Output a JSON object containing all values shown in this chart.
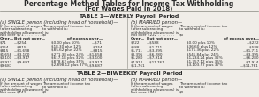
{
  "title1": "Percentage Method Tables for Income Tax Withholding",
  "title2": "(For Wages Paid in 2018)",
  "table1_header": "TABLE 1—WEEKLY Payroll Period",
  "table2_header": "TABLE 2—BIWEEKLY Payroll Period",
  "single_header_a": "(a) SINGLE person (including head of household)—",
  "married_header_b": "(b) MARRIED person—",
  "single_rows": [
    [
      "$71",
      "—$254",
      "$0.00 plus 10%",
      "—$71"
    ],
    [
      "$254",
      "—$815",
      "$18.30 plus 12%",
      "—$254"
    ],
    [
      "$815",
      "—$1,658",
      "$85.62 plus 22%",
      "—$815"
    ],
    [
      "$1,658",
      "—$3,100",
      "$271.38 plus 24%",
      "—$1,658"
    ],
    [
      "$3,100",
      "—$3,917",
      "$617.18 plus 32%",
      "—$3,100"
    ],
    [
      "$3,917",
      "—$9,687",
      "$878.62 plus 35%",
      "—$3,917"
    ],
    [
      "$9,687",
      "",
      "$2,898.12 plus 37%",
      "—$9,687"
    ]
  ],
  "married_rows": [
    [
      "$222",
      "—$588",
      "$0.00 plus 10%",
      "—$222"
    ],
    [
      "$588",
      "—$1,711",
      "$36.60 plus 12%",
      "—$588"
    ],
    [
      "$1,711",
      "—$3,395",
      "$171.36 plus 22%",
      "—$1,711"
    ],
    [
      "$3,395",
      "—$6,280",
      "$541.84 plus 24%",
      "—$3,395"
    ],
    [
      "$6,280",
      "—$7,914",
      "$1,234.24 plus 32%",
      "—$6,280"
    ],
    [
      "$7,914",
      "—$11,761",
      "$1,757.12 plus 35%",
      "—$7,914"
    ],
    [
      "$11,761",
      "",
      "$3,103.57 plus 37%",
      "—$11,761"
    ]
  ],
  "bg_color": "#f0ede8",
  "text_color": "#2a2a2a",
  "line_color": "#888880"
}
